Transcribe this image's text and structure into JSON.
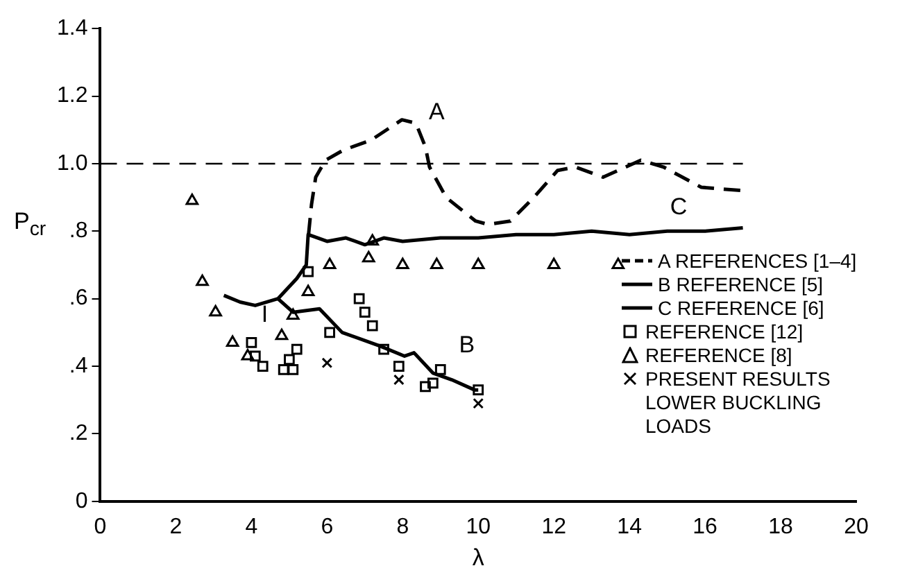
{
  "chart_data": {
    "type": "line",
    "ylabel": "P$_{cr}$",
    "xlabel": "λ",
    "xlim": [
      0,
      20
    ],
    "xticks": [
      0,
      2,
      4,
      6,
      8,
      10,
      12,
      14,
      16,
      18,
      20
    ],
    "ylim": [
      0,
      1.4
    ],
    "yticks": [
      0,
      {
        "value": 0.2,
        "label": ".2"
      },
      {
        "value": 0.4,
        "label": ".4"
      },
      {
        "value": 0.6,
        "label": ".6"
      },
      {
        "value": 0.8,
        "label": ".8"
      },
      {
        "value": 1,
        "label": "1.0"
      },
      {
        "value": 1.2,
        "label": "1.2"
      },
      {
        "value": 1.4,
        "label": "1.4"
      }
    ],
    "grid": false,
    "legend": "right",
    "ref_lines": [
      {
        "axis": "y",
        "value": 1,
        "color": "#000000",
        "line_style": "dashed"
      }
    ],
    "annotations": [
      "A",
      "B",
      "C",
      "I"
    ],
    "series": [
      {
        "name": "A REFERENCES [1–4]",
        "color": "#000000",
        "line_style": "dashed",
        "marker": "none",
        "x": [
          5.51,
          5.59,
          5.7,
          5.96,
          6.43,
          7.17,
          7.98,
          8.35,
          8.6,
          8.71,
          9.15,
          9.93,
          10.26,
          10.85,
          11.47,
          12.1,
          12.57,
          13.3,
          14.3,
          14.9,
          15.9,
          17
        ],
        "values": [
          0.79,
          0.88,
          0.96,
          1.01,
          1.04,
          1.07,
          1.13,
          1.12,
          1.05,
          0.99,
          0.9,
          0.83,
          0.82,
          0.83,
          0.9,
          0.98,
          0.99,
          0.96,
          1.01,
          0.99,
          0.93,
          0.92
        ]
      },
      {
        "name": "B REFERENCE [5]",
        "color": "#000000",
        "line_style": "solid",
        "marker": "none",
        "x": [
          4.7,
          5.1,
          5.8,
          6.4,
          7.4,
          8.05,
          8.3,
          8.8,
          9.3,
          9.9,
          10
        ],
        "values": [
          0.6,
          0.56,
          0.57,
          0.5,
          0.46,
          0.43,
          0.44,
          0.38,
          0.36,
          0.33,
          0.33
        ]
      },
      {
        "name": "C REFERENCE [6]",
        "color": "#000000",
        "line_style": "solid",
        "marker": "none",
        "x": [
          3.27,
          3.7,
          4.1,
          4.7,
          5.2,
          5.45,
          5.5,
          6,
          6.5,
          7,
          7.5,
          8,
          9,
          10,
          11,
          12,
          13,
          14,
          15,
          16,
          17
        ],
        "values": [
          0.61,
          0.59,
          0.58,
          0.6,
          0.66,
          0.7,
          0.79,
          0.77,
          0.78,
          0.76,
          0.78,
          0.77,
          0.78,
          0.78,
          0.79,
          0.79,
          0.8,
          0.79,
          0.8,
          0.8,
          0.81
        ]
      },
      {
        "name": "REFERENCE [12]",
        "type": "scatter",
        "color": "#000000",
        "marker": "square",
        "x": [
          5.5,
          4.0,
          4.1,
          4.3,
          4.85,
          5.1,
          5.0,
          5.2,
          6.07,
          6.85,
          7.0,
          7.2,
          7.5,
          7.9,
          8.6,
          8.8,
          9.0,
          10
        ],
        "values": [
          0.68,
          0.47,
          0.43,
          0.4,
          0.39,
          0.39,
          0.42,
          0.45,
          0.5,
          0.6,
          0.56,
          0.52,
          0.45,
          0.4,
          0.34,
          0.35,
          0.39,
          0.33
        ]
      },
      {
        "name": "REFERENCE [8]",
        "type": "scatter",
        "color": "#000000",
        "marker": "triangle",
        "x": [
          2.43,
          2.7,
          3.05,
          3.5,
          3.9,
          4.8,
          5.1,
          5.5,
          6.07,
          7.1,
          7.2,
          8.0,
          8.9,
          10.0,
          12.0,
          13.7
        ],
        "values": [
          0.89,
          0.65,
          0.56,
          0.47,
          0.43,
          0.49,
          0.55,
          0.62,
          0.7,
          0.72,
          0.77,
          0.7,
          0.7,
          0.7,
          0.7,
          0.7
        ]
      },
      {
        "name": "PRESENT RESULTS LOWER BUCKLING LOADS",
        "type": "scatter",
        "color": "#000000",
        "marker": "cross",
        "x": [
          6.0,
          7.9,
          10
        ],
        "values": [
          0.41,
          0.36,
          0.29
        ]
      }
    ]
  }
}
